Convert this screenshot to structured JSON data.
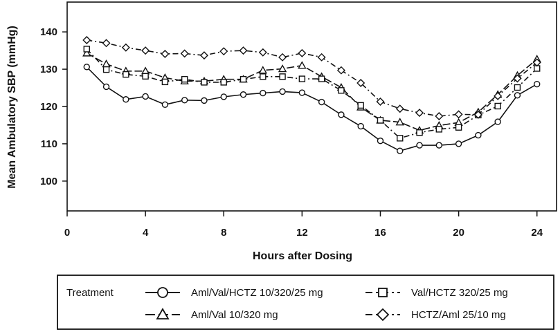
{
  "chart_data": {
    "type": "line",
    "title": "",
    "xlabel": "Hours after Dosing",
    "ylabel": "Mean Ambulatory SBP (mmHg)",
    "xlim": [
      0,
      25
    ],
    "ylim": [
      92,
      148
    ],
    "xticks": [
      0,
      4,
      8,
      12,
      16,
      20,
      24
    ],
    "yticks": [
      100,
      110,
      120,
      130,
      140
    ],
    "grid": false,
    "legend_title": "Treatment",
    "legend_position": "bottom",
    "x": [
      1,
      2,
      3,
      4,
      5,
      6,
      7,
      8,
      9,
      10,
      11,
      12,
      13,
      14,
      15,
      16,
      17,
      18,
      19,
      20,
      21,
      22,
      23,
      24
    ],
    "series": [
      {
        "name": "Aml/Val/HCTZ 10/320/25 mg",
        "marker": "circle",
        "dash": "solid",
        "values": [
          130.6,
          125.3,
          121.9,
          122.7,
          120.5,
          121.7,
          121.6,
          122.6,
          123.2,
          123.6,
          124.0,
          123.7,
          121.2,
          117.8,
          114.7,
          110.8,
          108.1,
          109.6,
          109.6,
          110.0,
          112.3,
          115.9,
          123.0,
          126.0
        ]
      },
      {
        "name": "Aml/Val 10/320 mg",
        "marker": "triangle",
        "dash": "long-dash",
        "values": [
          134.3,
          131.4,
          129.5,
          129.5,
          127.7,
          126.8,
          126.8,
          127.3,
          127.3,
          129.7,
          130.1,
          131.0,
          128.0,
          125.1,
          119.8,
          116.3,
          115.8,
          113.6,
          114.9,
          115.7,
          118.5,
          123.2,
          128.3,
          132.7
        ]
      },
      {
        "name": "Val/HCTZ 320/25 mg",
        "marker": "square",
        "dash": "dash-dot",
        "values": [
          135.4,
          129.9,
          128.6,
          128.1,
          126.6,
          127.3,
          126.5,
          126.5,
          127.3,
          128.0,
          128.0,
          127.4,
          127.4,
          124.3,
          120.3,
          116.3,
          111.5,
          113.0,
          113.9,
          114.4,
          117.7,
          120.1,
          125.1,
          130.2
        ]
      },
      {
        "name": "HCTZ/Aml 25/10 mg",
        "marker": "diamond",
        "dash": "dash-dot",
        "values": [
          137.8,
          137.0,
          135.8,
          135.0,
          134.1,
          134.2,
          133.7,
          134.8,
          135.0,
          134.5,
          133.2,
          134.3,
          133.2,
          129.7,
          126.3,
          121.3,
          119.4,
          118.3,
          117.4,
          117.9,
          117.8,
          122.8,
          127.5,
          131.8
        ]
      }
    ]
  }
}
